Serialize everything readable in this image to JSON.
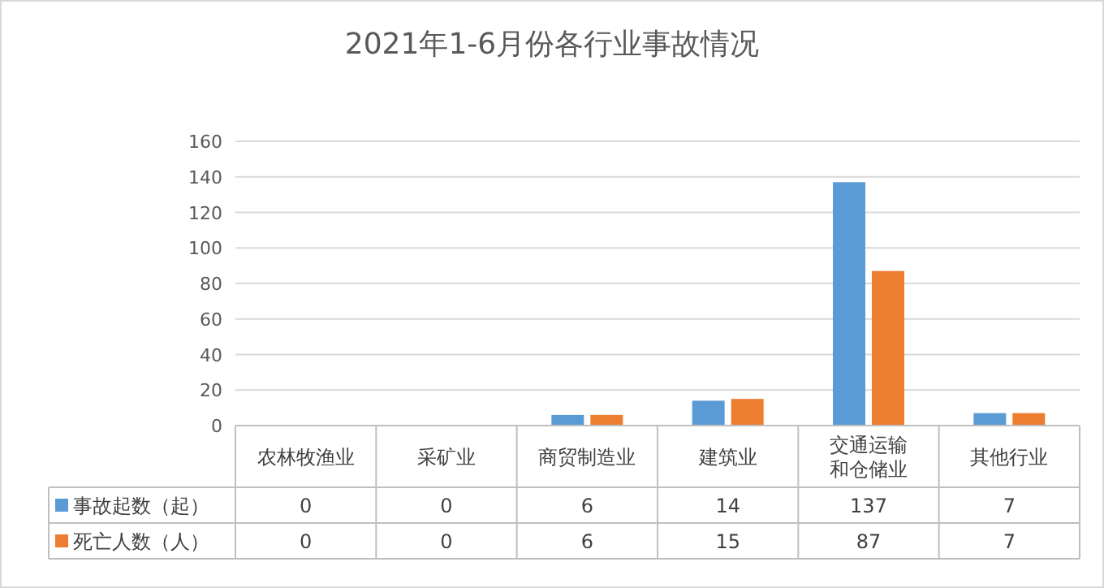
{
  "chart_data": {
    "type": "bar",
    "title": "2021年1-6月份各行业事故情况",
    "categories": [
      "农林牧渔业",
      "采矿业",
      "商贸制造业",
      "建筑业",
      "交通运输和仓储业",
      "其他行业"
    ],
    "series": [
      {
        "name": "事故起数（起）",
        "color": "#5b9bd5",
        "values": [
          0,
          0,
          6,
          14,
          137,
          7
        ]
      },
      {
        "name": "死亡人数（人）",
        "color": "#ed7d31",
        "values": [
          0,
          0,
          6,
          15,
          87,
          7
        ]
      }
    ],
    "ylim": [
      0,
      160
    ],
    "yticks": [
      0,
      20,
      40,
      60,
      80,
      100,
      120,
      140,
      160
    ],
    "grid": "y",
    "data_labels": true,
    "legend": "bottom left"
  }
}
